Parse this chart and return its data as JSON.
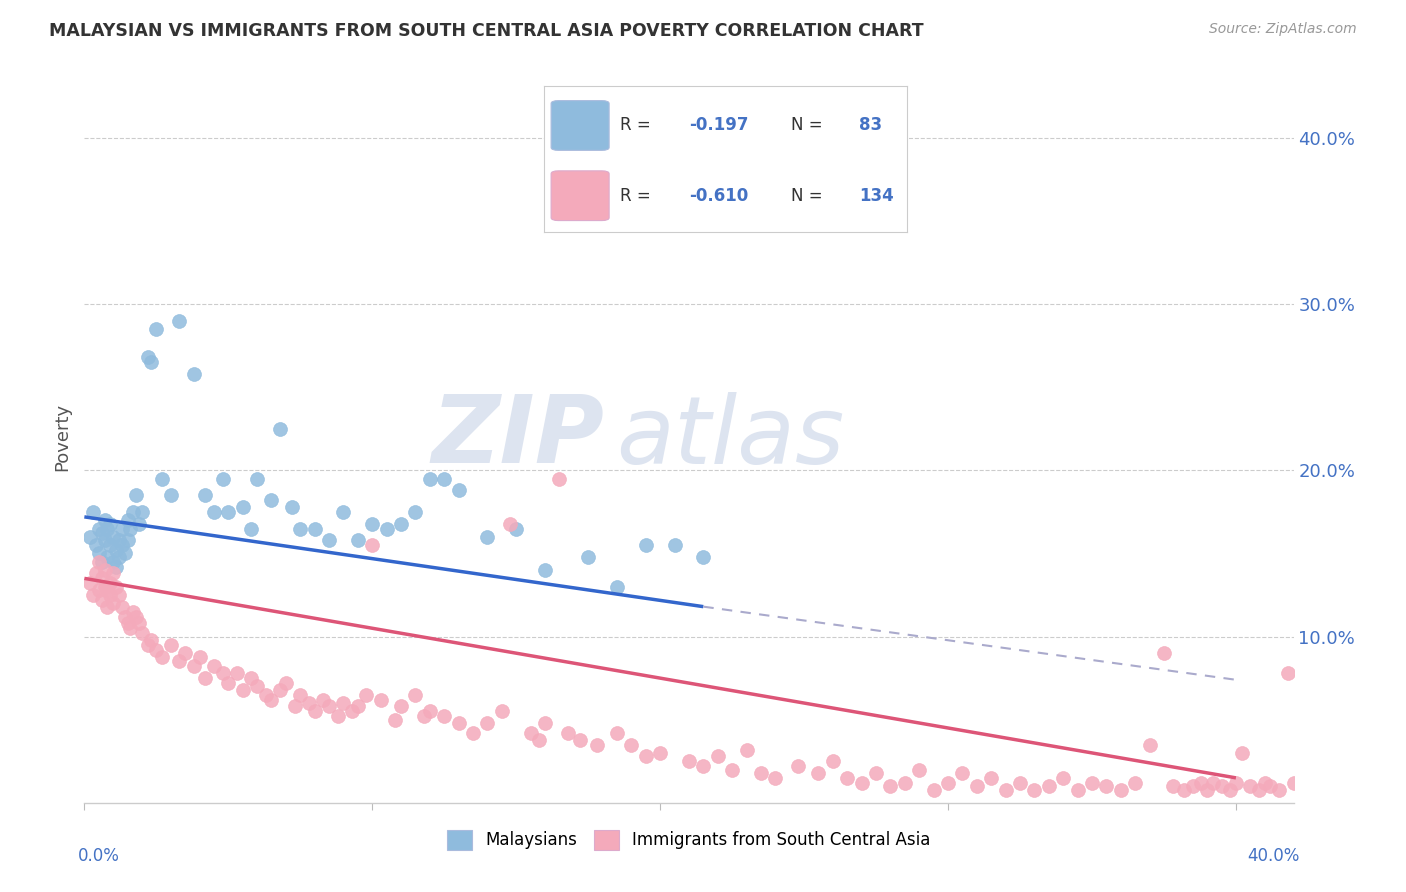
{
  "title": "MALAYSIAN VS IMMIGRANTS FROM SOUTH CENTRAL ASIA POVERTY CORRELATION CHART",
  "source": "Source: ZipAtlas.com",
  "ylabel": "Poverty",
  "ytick_labels": [
    "10.0%",
    "20.0%",
    "30.0%",
    "40.0%"
  ],
  "ytick_values": [
    0.1,
    0.2,
    0.3,
    0.4
  ],
  "xlim": [
    0.0,
    0.42
  ],
  "ylim": [
    0.0,
    0.44
  ],
  "watermark_zip": "ZIP",
  "watermark_atlas": "atlas",
  "color_blue": "#8fbbdd",
  "color_pink": "#f4aabb",
  "trendline_blue_start_x": 0.0,
  "trendline_blue_start_y": 0.172,
  "trendline_blue_end_x": 0.215,
  "trendline_blue_end_y": 0.118,
  "trendline_blue_dash_start_x": 0.215,
  "trendline_blue_dash_start_y": 0.118,
  "trendline_blue_dash_end_x": 0.4,
  "trendline_blue_dash_end_y": 0.074,
  "trendline_pink_start_x": 0.0,
  "trendline_pink_start_y": 0.135,
  "trendline_pink_end_x": 0.4,
  "trendline_pink_end_y": 0.015,
  "malaysians_x": [
    0.002,
    0.003,
    0.004,
    0.005,
    0.005,
    0.006,
    0.006,
    0.007,
    0.007,
    0.008,
    0.008,
    0.009,
    0.009,
    0.01,
    0.01,
    0.011,
    0.011,
    0.012,
    0.012,
    0.013,
    0.013,
    0.014,
    0.015,
    0.015,
    0.016,
    0.017,
    0.018,
    0.019,
    0.02,
    0.022,
    0.023,
    0.025,
    0.027,
    0.03,
    0.033,
    0.038,
    0.042,
    0.045,
    0.048,
    0.05,
    0.055,
    0.058,
    0.06,
    0.065,
    0.068,
    0.072,
    0.075,
    0.08,
    0.085,
    0.09,
    0.095,
    0.1,
    0.105,
    0.11,
    0.115,
    0.12,
    0.125,
    0.13,
    0.14,
    0.15,
    0.16,
    0.175,
    0.185,
    0.195,
    0.205,
    0.215
  ],
  "malaysians_y": [
    0.16,
    0.175,
    0.155,
    0.165,
    0.15,
    0.145,
    0.162,
    0.158,
    0.17,
    0.148,
    0.165,
    0.155,
    0.168,
    0.145,
    0.16,
    0.152,
    0.142,
    0.148,
    0.158,
    0.165,
    0.155,
    0.15,
    0.17,
    0.158,
    0.165,
    0.175,
    0.185,
    0.168,
    0.175,
    0.268,
    0.265,
    0.285,
    0.195,
    0.185,
    0.29,
    0.258,
    0.185,
    0.175,
    0.195,
    0.175,
    0.178,
    0.165,
    0.195,
    0.182,
    0.225,
    0.178,
    0.165,
    0.165,
    0.158,
    0.175,
    0.158,
    0.168,
    0.165,
    0.168,
    0.175,
    0.195,
    0.195,
    0.188,
    0.16,
    0.165,
    0.14,
    0.148,
    0.13,
    0.155,
    0.155,
    0.148
  ],
  "immigrants_x": [
    0.002,
    0.003,
    0.004,
    0.005,
    0.005,
    0.006,
    0.006,
    0.007,
    0.007,
    0.008,
    0.008,
    0.009,
    0.009,
    0.01,
    0.01,
    0.011,
    0.012,
    0.013,
    0.014,
    0.015,
    0.016,
    0.017,
    0.018,
    0.019,
    0.02,
    0.022,
    0.023,
    0.025,
    0.027,
    0.03,
    0.033,
    0.035,
    0.038,
    0.04,
    0.042,
    0.045,
    0.048,
    0.05,
    0.053,
    0.055,
    0.058,
    0.06,
    0.063,
    0.065,
    0.068,
    0.07,
    0.073,
    0.075,
    0.078,
    0.08,
    0.083,
    0.085,
    0.088,
    0.09,
    0.093,
    0.095,
    0.098,
    0.1,
    0.103,
    0.108,
    0.11,
    0.115,
    0.118,
    0.12,
    0.125,
    0.13,
    0.135,
    0.14,
    0.145,
    0.148,
    0.155,
    0.158,
    0.16,
    0.165,
    0.168,
    0.172,
    0.178,
    0.185,
    0.19,
    0.195,
    0.2,
    0.21,
    0.215,
    0.22,
    0.225,
    0.23,
    0.235,
    0.24,
    0.248,
    0.255,
    0.26,
    0.265,
    0.27,
    0.275,
    0.28,
    0.285,
    0.29,
    0.295,
    0.3,
    0.305,
    0.31,
    0.315,
    0.32,
    0.325,
    0.33,
    0.335,
    0.34,
    0.345,
    0.35,
    0.355,
    0.36,
    0.365,
    0.37,
    0.375,
    0.378,
    0.382,
    0.385,
    0.388,
    0.39,
    0.392,
    0.395,
    0.398,
    0.4,
    0.402,
    0.405,
    0.408,
    0.41,
    0.412,
    0.415,
    0.418,
    0.42
  ],
  "immigrants_y": [
    0.132,
    0.125,
    0.138,
    0.145,
    0.128,
    0.122,
    0.135,
    0.13,
    0.14,
    0.118,
    0.128,
    0.132,
    0.125,
    0.12,
    0.138,
    0.13,
    0.125,
    0.118,
    0.112,
    0.108,
    0.105,
    0.115,
    0.112,
    0.108,
    0.102,
    0.095,
    0.098,
    0.092,
    0.088,
    0.095,
    0.085,
    0.09,
    0.082,
    0.088,
    0.075,
    0.082,
    0.078,
    0.072,
    0.078,
    0.068,
    0.075,
    0.07,
    0.065,
    0.062,
    0.068,
    0.072,
    0.058,
    0.065,
    0.06,
    0.055,
    0.062,
    0.058,
    0.052,
    0.06,
    0.055,
    0.058,
    0.065,
    0.155,
    0.062,
    0.05,
    0.058,
    0.065,
    0.052,
    0.055,
    0.052,
    0.048,
    0.042,
    0.048,
    0.055,
    0.168,
    0.042,
    0.038,
    0.048,
    0.195,
    0.042,
    0.038,
    0.035,
    0.042,
    0.035,
    0.028,
    0.03,
    0.025,
    0.022,
    0.028,
    0.02,
    0.032,
    0.018,
    0.015,
    0.022,
    0.018,
    0.025,
    0.015,
    0.012,
    0.018,
    0.01,
    0.012,
    0.02,
    0.008,
    0.012,
    0.018,
    0.01,
    0.015,
    0.008,
    0.012,
    0.008,
    0.01,
    0.015,
    0.008,
    0.012,
    0.01,
    0.008,
    0.012,
    0.035,
    0.09,
    0.01,
    0.008,
    0.01,
    0.012,
    0.008,
    0.012,
    0.01,
    0.008,
    0.012,
    0.03,
    0.01,
    0.008,
    0.012,
    0.01,
    0.008,
    0.078,
    0.012
  ]
}
